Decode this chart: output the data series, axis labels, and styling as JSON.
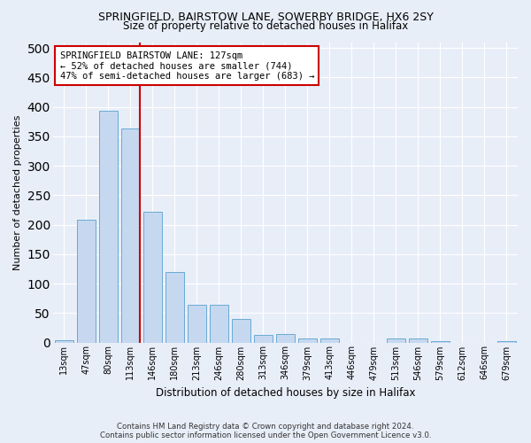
{
  "title1": "SPRINGFIELD, BAIRSTOW LANE, SOWERBY BRIDGE, HX6 2SY",
  "title2": "Size of property relative to detached houses in Halifax",
  "xlabel": "Distribution of detached houses by size in Halifax",
  "ylabel": "Number of detached properties",
  "bar_color": "#c5d8f0",
  "bar_edge_color": "#6aaad4",
  "background_color": "#e8eef8",
  "grid_color": "#ffffff",
  "annotation_line_color": "#cc0000",
  "annotation_box_color": "#ffffff",
  "annotation_box_edge": "#cc0000",
  "annotation_text": "SPRINGFIELD BAIRSTOW LANE: 127sqm\n← 52% of detached houses are smaller (744)\n47% of semi-detached houses are larger (683) →",
  "property_size_sqm": 127,
  "categories": [
    "13sqm",
    "47sqm",
    "80sqm",
    "113sqm",
    "146sqm",
    "180sqm",
    "213sqm",
    "246sqm",
    "280sqm",
    "313sqm",
    "346sqm",
    "379sqm",
    "413sqm",
    "446sqm",
    "479sqm",
    "513sqm",
    "546sqm",
    "579sqm",
    "612sqm",
    "646sqm",
    "679sqm"
  ],
  "values": [
    4,
    208,
    393,
    363,
    222,
    119,
    64,
    64,
    40,
    13,
    14,
    7,
    7,
    0,
    0,
    7,
    7,
    3,
    0,
    0,
    3
  ],
  "ylim": [
    0,
    510
  ],
  "yticks": [
    0,
    50,
    100,
    150,
    200,
    250,
    300,
    350,
    400,
    450,
    500
  ],
  "footer1": "Contains HM Land Registry data © Crown copyright and database right 2024.",
  "footer2": "Contains public sector information licensed under the Open Government Licence v3.0."
}
